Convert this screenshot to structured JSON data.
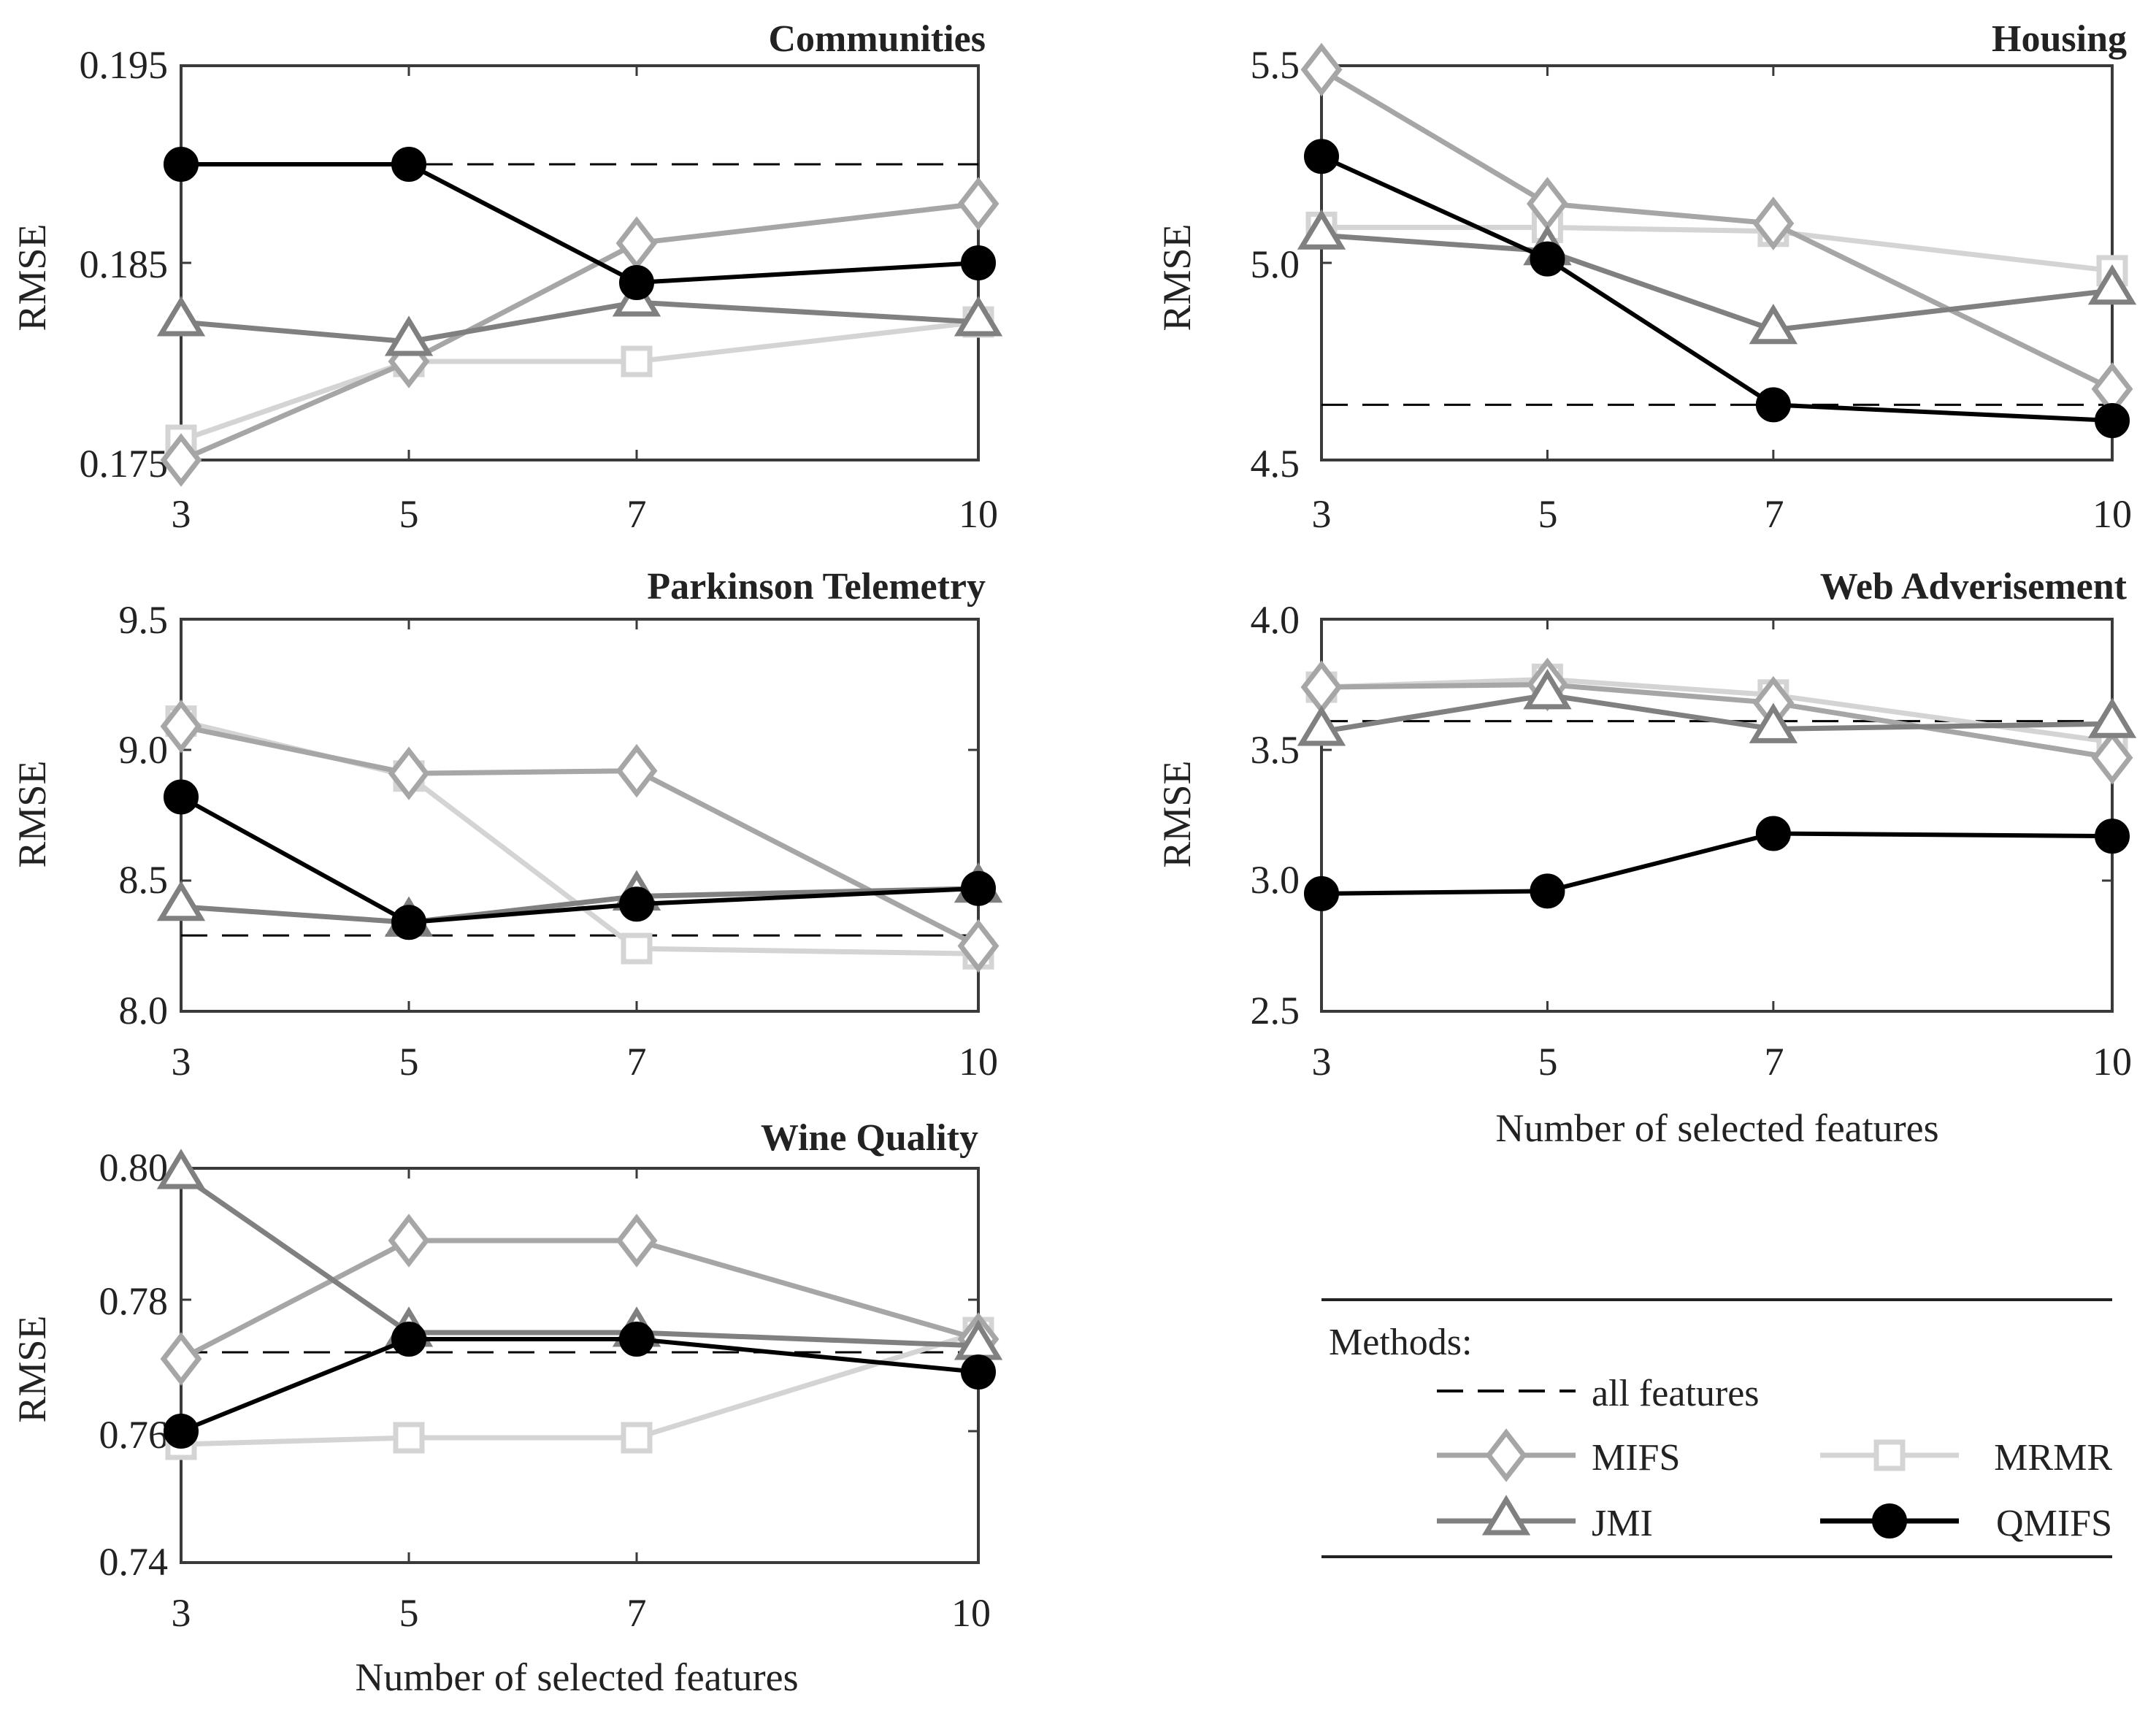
{
  "colors": {
    "MIFS": "#a6a6a6",
    "MRMR": "#d4d4d4",
    "JMI": "#808080",
    "QMIFS": "#000000",
    "all features": "#000000",
    "axis": "#3a3a3a"
  },
  "legend": {
    "heading": "Methods:",
    "entries": [
      {
        "key": "all",
        "label": "all features"
      },
      {
        "key": "MIFS",
        "label": "MIFS"
      },
      {
        "key": "MRMR",
        "label": "MRMR"
      },
      {
        "key": "JMI",
        "label": "JMI"
      },
      {
        "key": "QMIFS",
        "label": "QMIFS"
      }
    ]
  },
  "chart_data": [
    {
      "type": "line",
      "title": "Communities",
      "xlabel": "",
      "ylabel": "RMSE",
      "x": [
        3,
        5,
        7,
        10
      ],
      "x_ticks": [
        "3",
        "5",
        "7",
        "10"
      ],
      "ylim": [
        0.175,
        0.195
      ],
      "y_ticks": [
        "0.175",
        "0.185",
        "0.195"
      ],
      "baseline": {
        "name": "all features",
        "value": 0.19
      },
      "series": [
        {
          "name": "MIFS",
          "values": [
            0.175,
            0.18,
            0.186,
            0.188
          ]
        },
        {
          "name": "MRMR",
          "values": [
            0.176,
            0.18,
            0.18,
            0.182
          ]
        },
        {
          "name": "JMI",
          "values": [
            0.182,
            0.181,
            0.183,
            0.182
          ]
        },
        {
          "name": "QMIFS",
          "values": [
            0.19,
            0.19,
            0.184,
            0.185
          ]
        }
      ]
    },
    {
      "type": "line",
      "title": "Housing",
      "xlabel": "",
      "ylabel": "RMSE",
      "x": [
        3,
        5,
        7,
        10
      ],
      "x_ticks": [
        "3",
        "5",
        "7",
        "10"
      ],
      "ylim": [
        4.5,
        5.5
      ],
      "y_ticks": [
        "4.5",
        "5.0",
        "5.5"
      ],
      "baseline": {
        "name": "all features",
        "value": 4.64
      },
      "series": [
        {
          "name": "MIFS",
          "values": [
            5.49,
            5.15,
            5.1,
            4.68
          ]
        },
        {
          "name": "MRMR",
          "values": [
            5.09,
            5.09,
            5.08,
            4.98
          ]
        },
        {
          "name": "JMI",
          "values": [
            5.07,
            5.03,
            4.83,
            4.93
          ]
        },
        {
          "name": "QMIFS",
          "values": [
            5.27,
            5.01,
            4.64,
            4.6
          ]
        }
      ]
    },
    {
      "type": "line",
      "title": "Parkinson Telemetry",
      "xlabel": "",
      "ylabel": "RMSE",
      "x": [
        3,
        5,
        7,
        10
      ],
      "x_ticks": [
        "3",
        "5",
        "7",
        "10"
      ],
      "ylim": [
        8.0,
        9.5
      ],
      "y_ticks": [
        "8.0",
        "8.5",
        "9.0",
        "9.5"
      ],
      "baseline": {
        "name": "all features",
        "value": 8.29
      },
      "series": [
        {
          "name": "MIFS",
          "values": [
            9.09,
            8.91,
            8.92,
            8.25
          ]
        },
        {
          "name": "MRMR",
          "values": [
            9.11,
            8.9,
            8.24,
            8.22
          ]
        },
        {
          "name": "JMI",
          "values": [
            8.4,
            8.34,
            8.44,
            8.47
          ]
        },
        {
          "name": "QMIFS",
          "values": [
            8.82,
            8.34,
            8.41,
            8.47
          ]
        }
      ]
    },
    {
      "type": "line",
      "title": "Web Adverisement",
      "xlabel": "Number of selected features",
      "ylabel": "RMSE",
      "x": [
        3,
        5,
        7,
        10
      ],
      "x_ticks": [
        "3",
        "5",
        "7",
        "10"
      ],
      "ylim": [
        2.5,
        4.0
      ],
      "y_ticks": [
        "2.5",
        "3.0",
        "3.5",
        "4.0"
      ],
      "baseline": {
        "name": "all features",
        "value": 3.61
      },
      "series": [
        {
          "name": "MIFS",
          "values": [
            3.74,
            3.75,
            3.68,
            3.47
          ]
        },
        {
          "name": "MRMR",
          "values": [
            3.74,
            3.77,
            3.71,
            3.53
          ]
        },
        {
          "name": "JMI",
          "values": [
            3.57,
            3.71,
            3.58,
            3.6
          ]
        },
        {
          "name": "QMIFS",
          "values": [
            2.95,
            2.96,
            3.18,
            3.17
          ]
        }
      ]
    },
    {
      "type": "line",
      "title": "Wine Quality",
      "xlabel": "Number of selected features",
      "ylabel": "RMSE",
      "x": [
        3,
        5,
        7,
        10
      ],
      "x_ticks": [
        "3",
        "5",
        "7",
        "10"
      ],
      "ylim": [
        0.74,
        0.8
      ],
      "y_ticks": [
        "0.74",
        "0.76",
        "0.78",
        "0.80"
      ],
      "baseline": {
        "name": "all features",
        "value": 0.772
      },
      "series": [
        {
          "name": "MIFS",
          "values": [
            0.771,
            0.789,
            0.789,
            0.774
          ]
        },
        {
          "name": "MRMR",
          "values": [
            0.758,
            0.759,
            0.759,
            0.775
          ]
        },
        {
          "name": "JMI",
          "values": [
            0.799,
            0.775,
            0.775,
            0.773
          ]
        },
        {
          "name": "QMIFS",
          "values": [
            0.76,
            0.774,
            0.774,
            0.769
          ]
        }
      ]
    }
  ]
}
